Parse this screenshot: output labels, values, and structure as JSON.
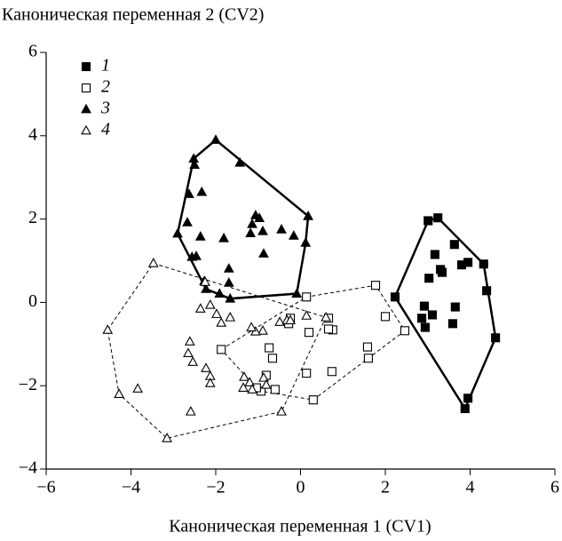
{
  "chart_data": {
    "type": "scatter",
    "xlabel": "Каноническая переменная 1 (CV1)",
    "ylabel": "Каноническая переменная 2 (CV2)",
    "xlim": [
      -6,
      6
    ],
    "xticks": [
      {
        "value": -6,
        "label": "−6"
      },
      {
        "value": -4,
        "label": "−4"
      },
      {
        "value": -2,
        "label": "−2"
      },
      0,
      2,
      4,
      6
    ],
    "ylim": [
      -4,
      6
    ],
    "yticks": [
      {
        "value": -4,
        "label": "−4"
      },
      {
        "value": -2,
        "label": "−2"
      },
      0,
      2,
      4,
      6
    ],
    "legend": "upper left",
    "series": [
      {
        "name": "1",
        "color": "#000000",
        "marker": "square",
        "filled": true,
        "hull": "solid",
        "x": [
          2.23,
          3.01,
          3.24,
          3.17,
          3.63,
          3.03,
          3.3,
          3.34,
          2.92,
          3.11,
          2.86,
          2.94,
          3.65,
          3.59,
          3.8,
          3.95,
          4.32,
          4.39,
          4.6,
          3.88,
          3.95
        ],
        "y": [
          0.13,
          1.96,
          2.03,
          1.15,
          1.39,
          0.58,
          0.79,
          0.72,
          -0.09,
          -0.3,
          -0.38,
          -0.6,
          -0.11,
          -0.51,
          0.9,
          0.96,
          0.92,
          0.28,
          -0.85,
          -2.55,
          -2.3
        ]
      },
      {
        "name": "2",
        "color": "#000000",
        "marker": "square",
        "filled": false,
        "hull": "dashed",
        "x": [
          0.14,
          1.77,
          2.0,
          2.46,
          1.58,
          1.6,
          0.74,
          0.14,
          0.3,
          0.2,
          0.66,
          0.76,
          0.66,
          -0.24,
          -0.28,
          -0.66,
          -0.74,
          -0.81,
          -0.93,
          -1.04,
          -0.6,
          -1.87
        ],
        "y": [
          0.13,
          0.41,
          -0.34,
          -0.68,
          -1.07,
          -1.34,
          -1.66,
          -1.7,
          -2.34,
          -0.72,
          -0.38,
          -0.66,
          -0.64,
          -0.38,
          -0.51,
          -1.34,
          -1.09,
          -1.75,
          -2.13,
          -2.05,
          -2.09,
          -1.13
        ]
      },
      {
        "name": "3",
        "color": "#000000",
        "marker": "triangle",
        "filled": true,
        "hull": "solid",
        "x": [
          -2.0,
          -2.52,
          -2.5,
          -2.33,
          -2.63,
          -2.67,
          -2.9,
          -1.43,
          0.18,
          -0.97,
          -1.06,
          -1.14,
          -1.18,
          -0.89,
          -0.45,
          -0.87,
          -0.16,
          -1.81,
          -2.36,
          -2.46,
          -2.56,
          -2.27,
          -2.23,
          -1.69,
          -1.69,
          -1.66,
          -1.91,
          -0.09,
          0.12
        ],
        "y": [
          3.9,
          3.45,
          3.3,
          2.65,
          2.6,
          1.92,
          1.65,
          3.35,
          2.07,
          2.02,
          2.09,
          1.88,
          1.66,
          1.71,
          1.75,
          1.17,
          1.6,
          1.54,
          1.58,
          1.11,
          1.09,
          0.51,
          0.32,
          0.81,
          0.47,
          0.09,
          0.21,
          0.21,
          1.43
        ]
      },
      {
        "name": "4",
        "color": "#000000",
        "marker": "triangle",
        "filled": false,
        "hull": "dashed",
        "x": [
          -3.47,
          -4.55,
          -4.28,
          -3.84,
          -3.15,
          -2.59,
          -0.45,
          0.14,
          -2.25,
          -2.36,
          -2.13,
          -1.98,
          -1.87,
          -1.66,
          -2.61,
          -2.65,
          -2.54,
          -2.23,
          -2.13,
          -2.13,
          -1.33,
          -1.35,
          -1.2,
          -1.14,
          -0.87,
          -0.81,
          -0.89,
          -1.06,
          -1.16,
          -0.49,
          -0.32,
          -0.24,
          0.6
        ],
        "y": [
          0.94,
          -0.66,
          -2.2,
          -2.07,
          -3.26,
          -2.62,
          -2.62,
          -0.32,
          0.49,
          -0.15,
          -0.06,
          -0.28,
          -0.49,
          -0.36,
          -0.94,
          -1.22,
          -1.43,
          -1.58,
          -1.77,
          -1.94,
          -1.79,
          -2.05,
          -1.92,
          -2.09,
          -1.81,
          -1.98,
          -0.68,
          -0.7,
          -0.6,
          -0.47,
          -0.43,
          -0.43,
          -0.36
        ]
      }
    ]
  }
}
